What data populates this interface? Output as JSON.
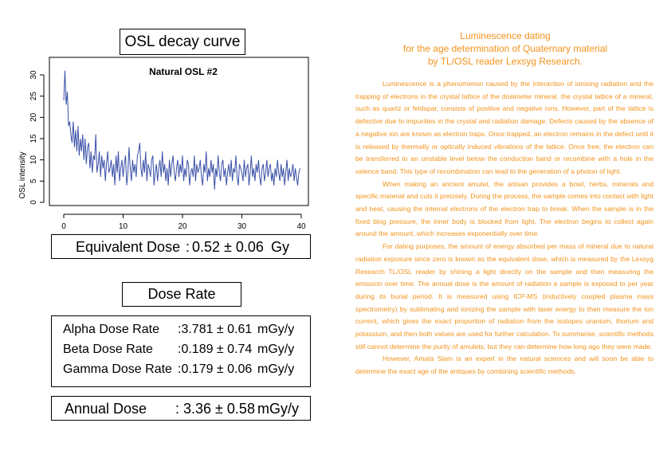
{
  "osl": {
    "title": "OSL decay curve",
    "chart_title": "Natural OSL #2"
  },
  "chart_data": {
    "type": "line",
    "title": "Natural OSL #2",
    "xlabel": "",
    "ylabel": "OSL intensity",
    "xlim": [
      0,
      40
    ],
    "ylim": [
      0,
      30
    ],
    "x_ticks": [
      0,
      10,
      20,
      30,
      40
    ],
    "y_ticks": [
      0,
      5,
      10,
      15,
      20,
      25,
      30
    ],
    "grid": false,
    "series": [
      {
        "color": "#3a4fa8",
        "x": [
          0,
          0.2,
          0.4,
          0.6,
          0.8,
          1,
          1.2,
          1.4,
          1.6,
          1.8,
          2,
          2.2,
          2.4,
          2.6,
          2.8,
          3,
          3.2,
          3.4,
          3.6,
          3.8,
          4,
          4.2,
          4.4,
          4.6,
          4.8,
          5,
          5.2,
          5.4,
          5.6,
          5.8,
          6,
          6.2,
          6.4,
          6.6,
          6.8,
          7,
          7.2,
          7.4,
          7.6,
          7.8,
          8,
          8.2,
          8.4,
          8.6,
          8.8,
          9,
          9.2,
          9.4,
          9.6,
          9.8,
          10,
          10.2,
          10.4,
          10.6,
          10.8,
          11,
          11.2,
          11.4,
          11.6,
          11.8,
          12,
          12.2,
          12.4,
          12.6,
          12.8,
          13,
          13.2,
          13.4,
          13.6,
          13.8,
          14,
          14.2,
          14.4,
          14.6,
          14.8,
          15,
          15.2,
          15.4,
          15.6,
          15.8,
          16,
          16.2,
          16.4,
          16.6,
          16.8,
          17,
          17.2,
          17.4,
          17.6,
          17.8,
          18,
          18.2,
          18.4,
          18.6,
          18.8,
          19,
          19.2,
          19.4,
          19.6,
          19.8,
          20,
          20.2,
          20.4,
          20.6,
          20.8,
          21,
          21.2,
          21.4,
          21.6,
          21.8,
          22,
          22.2,
          22.4,
          22.6,
          22.8,
          23,
          23.2,
          23.4,
          23.6,
          23.8,
          24,
          24.2,
          24.4,
          24.6,
          24.8,
          25,
          25.2,
          25.4,
          25.6,
          25.8,
          26,
          26.2,
          26.4,
          26.6,
          26.8,
          27,
          27.2,
          27.4,
          27.6,
          27.8,
          28,
          28.2,
          28.4,
          28.6,
          28.8,
          29,
          29.2,
          29.4,
          29.6,
          29.8,
          30,
          30.2,
          30.4,
          30.6,
          30.8,
          31,
          31.2,
          31.4,
          31.6,
          31.8,
          32,
          32.2,
          32.4,
          32.6,
          32.8,
          33,
          33.2,
          33.4,
          33.6,
          33.8,
          34,
          34.2,
          34.4,
          34.6,
          34.8,
          35,
          35.2,
          35.4,
          35.6,
          35.8,
          36,
          36.2,
          36.4,
          36.6,
          36.8,
          37,
          37.2,
          37.4,
          37.6,
          37.8,
          38,
          38.2,
          38.4,
          38.6,
          38.8,
          39,
          39.2,
          39.4,
          39.6,
          39.8
        ],
        "y": [
          24,
          31,
          23,
          26,
          18,
          19,
          16,
          14,
          19,
          13,
          17,
          12,
          18,
          11,
          15,
          12,
          16,
          10,
          15,
          9,
          13,
          14,
          8,
          12,
          7,
          11,
          10,
          16,
          7,
          9,
          12,
          6,
          11,
          8,
          10,
          5,
          9,
          12,
          7,
          8,
          10,
          6,
          9,
          4,
          11,
          7,
          12,
          5,
          8,
          10,
          6,
          9,
          11,
          4,
          7,
          13,
          8,
          5,
          10,
          7,
          9,
          6,
          11,
          12,
          14,
          8,
          6,
          10,
          7,
          12,
          5,
          9,
          8,
          6,
          10,
          11,
          4,
          7,
          9,
          5,
          8,
          10,
          6,
          12,
          7,
          9,
          5,
          8,
          4,
          10,
          6,
          9,
          11,
          7,
          5,
          8,
          10,
          6,
          9,
          7,
          11,
          5,
          8,
          6,
          10,
          9,
          4,
          7,
          8,
          6,
          11,
          5,
          9,
          7,
          8,
          10,
          6,
          4,
          9,
          7,
          12,
          5,
          8,
          6,
          10,
          7,
          9,
          3,
          8,
          6,
          11,
          7,
          5,
          9,
          10,
          6,
          8,
          4,
          7,
          9,
          6,
          10,
          5,
          8,
          7,
          11,
          6,
          4,
          9,
          8,
          7,
          5,
          10,
          6,
          8,
          9,
          4,
          7,
          11,
          6,
          8,
          5,
          9,
          7,
          10,
          6,
          4,
          8,
          9,
          5,
          7,
          10,
          6,
          8,
          9,
          5,
          7,
          4,
          8,
          6,
          10,
          7,
          5,
          9,
          6,
          8,
          4,
          7,
          10,
          5,
          8,
          6,
          7,
          9,
          5,
          8,
          6,
          4,
          7,
          8
        ]
      }
    ]
  },
  "equivalent_dose": {
    "label": "Equivalent Dose",
    "colon": ":",
    "value": "0.52 ± 0.06",
    "unit": "Gy"
  },
  "dose_rate": {
    "title": "Dose Rate",
    "rows": [
      {
        "label": "Alpha Dose Rate",
        "value": ":3.781 ± 0.61",
        "unit": "mGy/y"
      },
      {
        "label": "Beta Dose Rate",
        "value": ":0.189 ± 0.74",
        "unit": "mGy/y"
      },
      {
        "label": "Gamma Dose Rate",
        "value": ":0.179 ± 0.06",
        "unit": "mGy/y"
      }
    ]
  },
  "annual_dose": {
    "label": "Annual Dose",
    "value": ": 3.36 ± 0.58",
    "unit": "mGy/y"
  },
  "article": {
    "color": "#f2931c",
    "title_lines": [
      "Luminescence dating",
      "for the age determination of Quaternary material",
      "by TL/OSL reader Lexsyg Research."
    ],
    "paragraphs": [
      "Luminescence is a phenomenon caused by the interaction of ionising radiation and the trapping of electrons in the crystal lattice of the dosimeter mineral. the crystal lattice of a mineral, such as quartz or feldspar, consists of positive and negative ions. However, part of the lattice is defective due to impurities in the crystal and radiation damage. Defects caused by the absence of a negative ion are known as electron traps. Once trapped, an electron remains in the defect until it is released by thermally or optically induced vibrations of the lattice. Once free, the electron can be transferred to an unstable level below the conduction band or recombine with a hole in the valence band. This type of recombination can lead to the generation of a photon of light.",
      "When making an ancient amulet, the artisan provides a bowl, herbs, minerals and specific material and cuts it precisely. During the process, the sample comes into contact with light and heat, causing the internal electrons of the electron trap to break. When the sample is in the fixed blog pressure, the inner body is blocked from light. The electron begins to collect again around the amount, which increases exponentially over time.",
      "For dating purposes, the amount of energy absorbed per mass of mineral due to natural radiation exposure since zero is known as the equivalent dose, which is measured by the Lexsyg Research TL/OSL reader by shining a light directly on the sample and then measuring the emission over time. The annual dose is the amount of radiation a sample is exposed to per year during its burial period. It is measured using ICP-MS (inductively coupled plasma mass spectrometry) by sublimating and ionizing the sample with laser energy to then measure the ion current, which gives the exact proportion of radiation from the isotopes uranium, thorium and potassium, and then both values are used for further calculation. To summarise, scientific methods still cannot determine the purity of amulets, but they can determine how long ago they were made.",
      "However, Amata Siam is an expert in the natural sciences and will soon be able to determine the exact age of the antiques by combining scientific methods."
    ]
  }
}
